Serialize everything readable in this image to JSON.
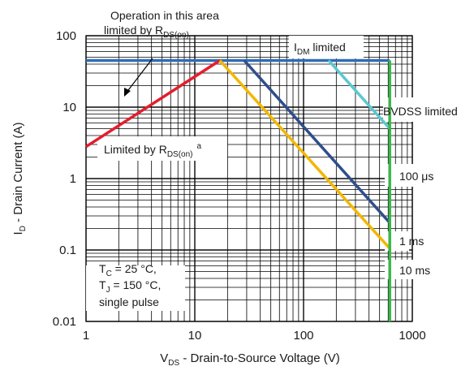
{
  "chart_data": {
    "type": "line",
    "x_scale": "log",
    "y_scale": "log",
    "xlim": [
      1,
      1000
    ],
    "ylim": [
      0.01,
      100
    ],
    "x_ticks": [
      "1",
      "10",
      "100",
      "1000"
    ],
    "y_ticks": [
      "0.01",
      "0.1",
      "1",
      "10",
      "100"
    ],
    "grid": true,
    "xlabel": {
      "main": "V",
      "sub": "DS",
      "rest": " - Drain-to-Source Voltage (V)"
    },
    "ylabel": {
      "main": "I",
      "sub": "D",
      "rest": " - Drain Current (A)"
    },
    "series": [
      {
        "key": "rdson",
        "color": "#e31e2d",
        "points": [
          [
            1,
            2.8
          ],
          [
            17,
            45
          ]
        ]
      },
      {
        "key": "idm",
        "color": "#2f6db5",
        "points": [
          [
            1,
            45
          ],
          [
            620,
            45
          ]
        ]
      },
      {
        "key": "dc",
        "color": "#f2b705",
        "points": [
          [
            17,
            45
          ],
          [
            620,
            0.105
          ]
        ]
      },
      {
        "key": "ms10",
        "color": "#2f6db5",
        "points": [
          [
            28.5,
            45
          ],
          [
            620,
            0.24
          ]
        ]
      },
      {
        "key": "ms1",
        "color": "#2f4e8c",
        "points": [
          [
            28.5,
            45
          ],
          [
            620,
            0.24
          ]
        ]
      },
      {
        "key": "us100",
        "color": "#5bc8d1",
        "points": [
          [
            170,
            45
          ],
          [
            620,
            5.0
          ]
        ]
      },
      {
        "key": "bvdss",
        "color": "#3cb54a",
        "points": [
          [
            620,
            0.01
          ],
          [
            620,
            45
          ]
        ]
      }
    ],
    "annotations": {
      "op_line1": "Operation in this area",
      "op_line2_pre": "limited by R",
      "op_line2_sub": "DS(on)",
      "idm_main": "I",
      "idm_sub": "DM",
      "idm_rest": " limited",
      "bvdss": "BVDSS limited",
      "rds_pre": "Limited by R",
      "rds_sub": "DS(on)",
      "rds_sup": "a",
      "us100": "100 μs",
      "ms1": "1 ms",
      "ms10": "10 ms",
      "tc_main": "T",
      "tc_sub": "C",
      "tc_rest": " = 25 °C,",
      "tj_main": "T",
      "tj_sub": "J",
      "tj_rest": " = 150 °C,",
      "pulse": "single pulse"
    }
  }
}
